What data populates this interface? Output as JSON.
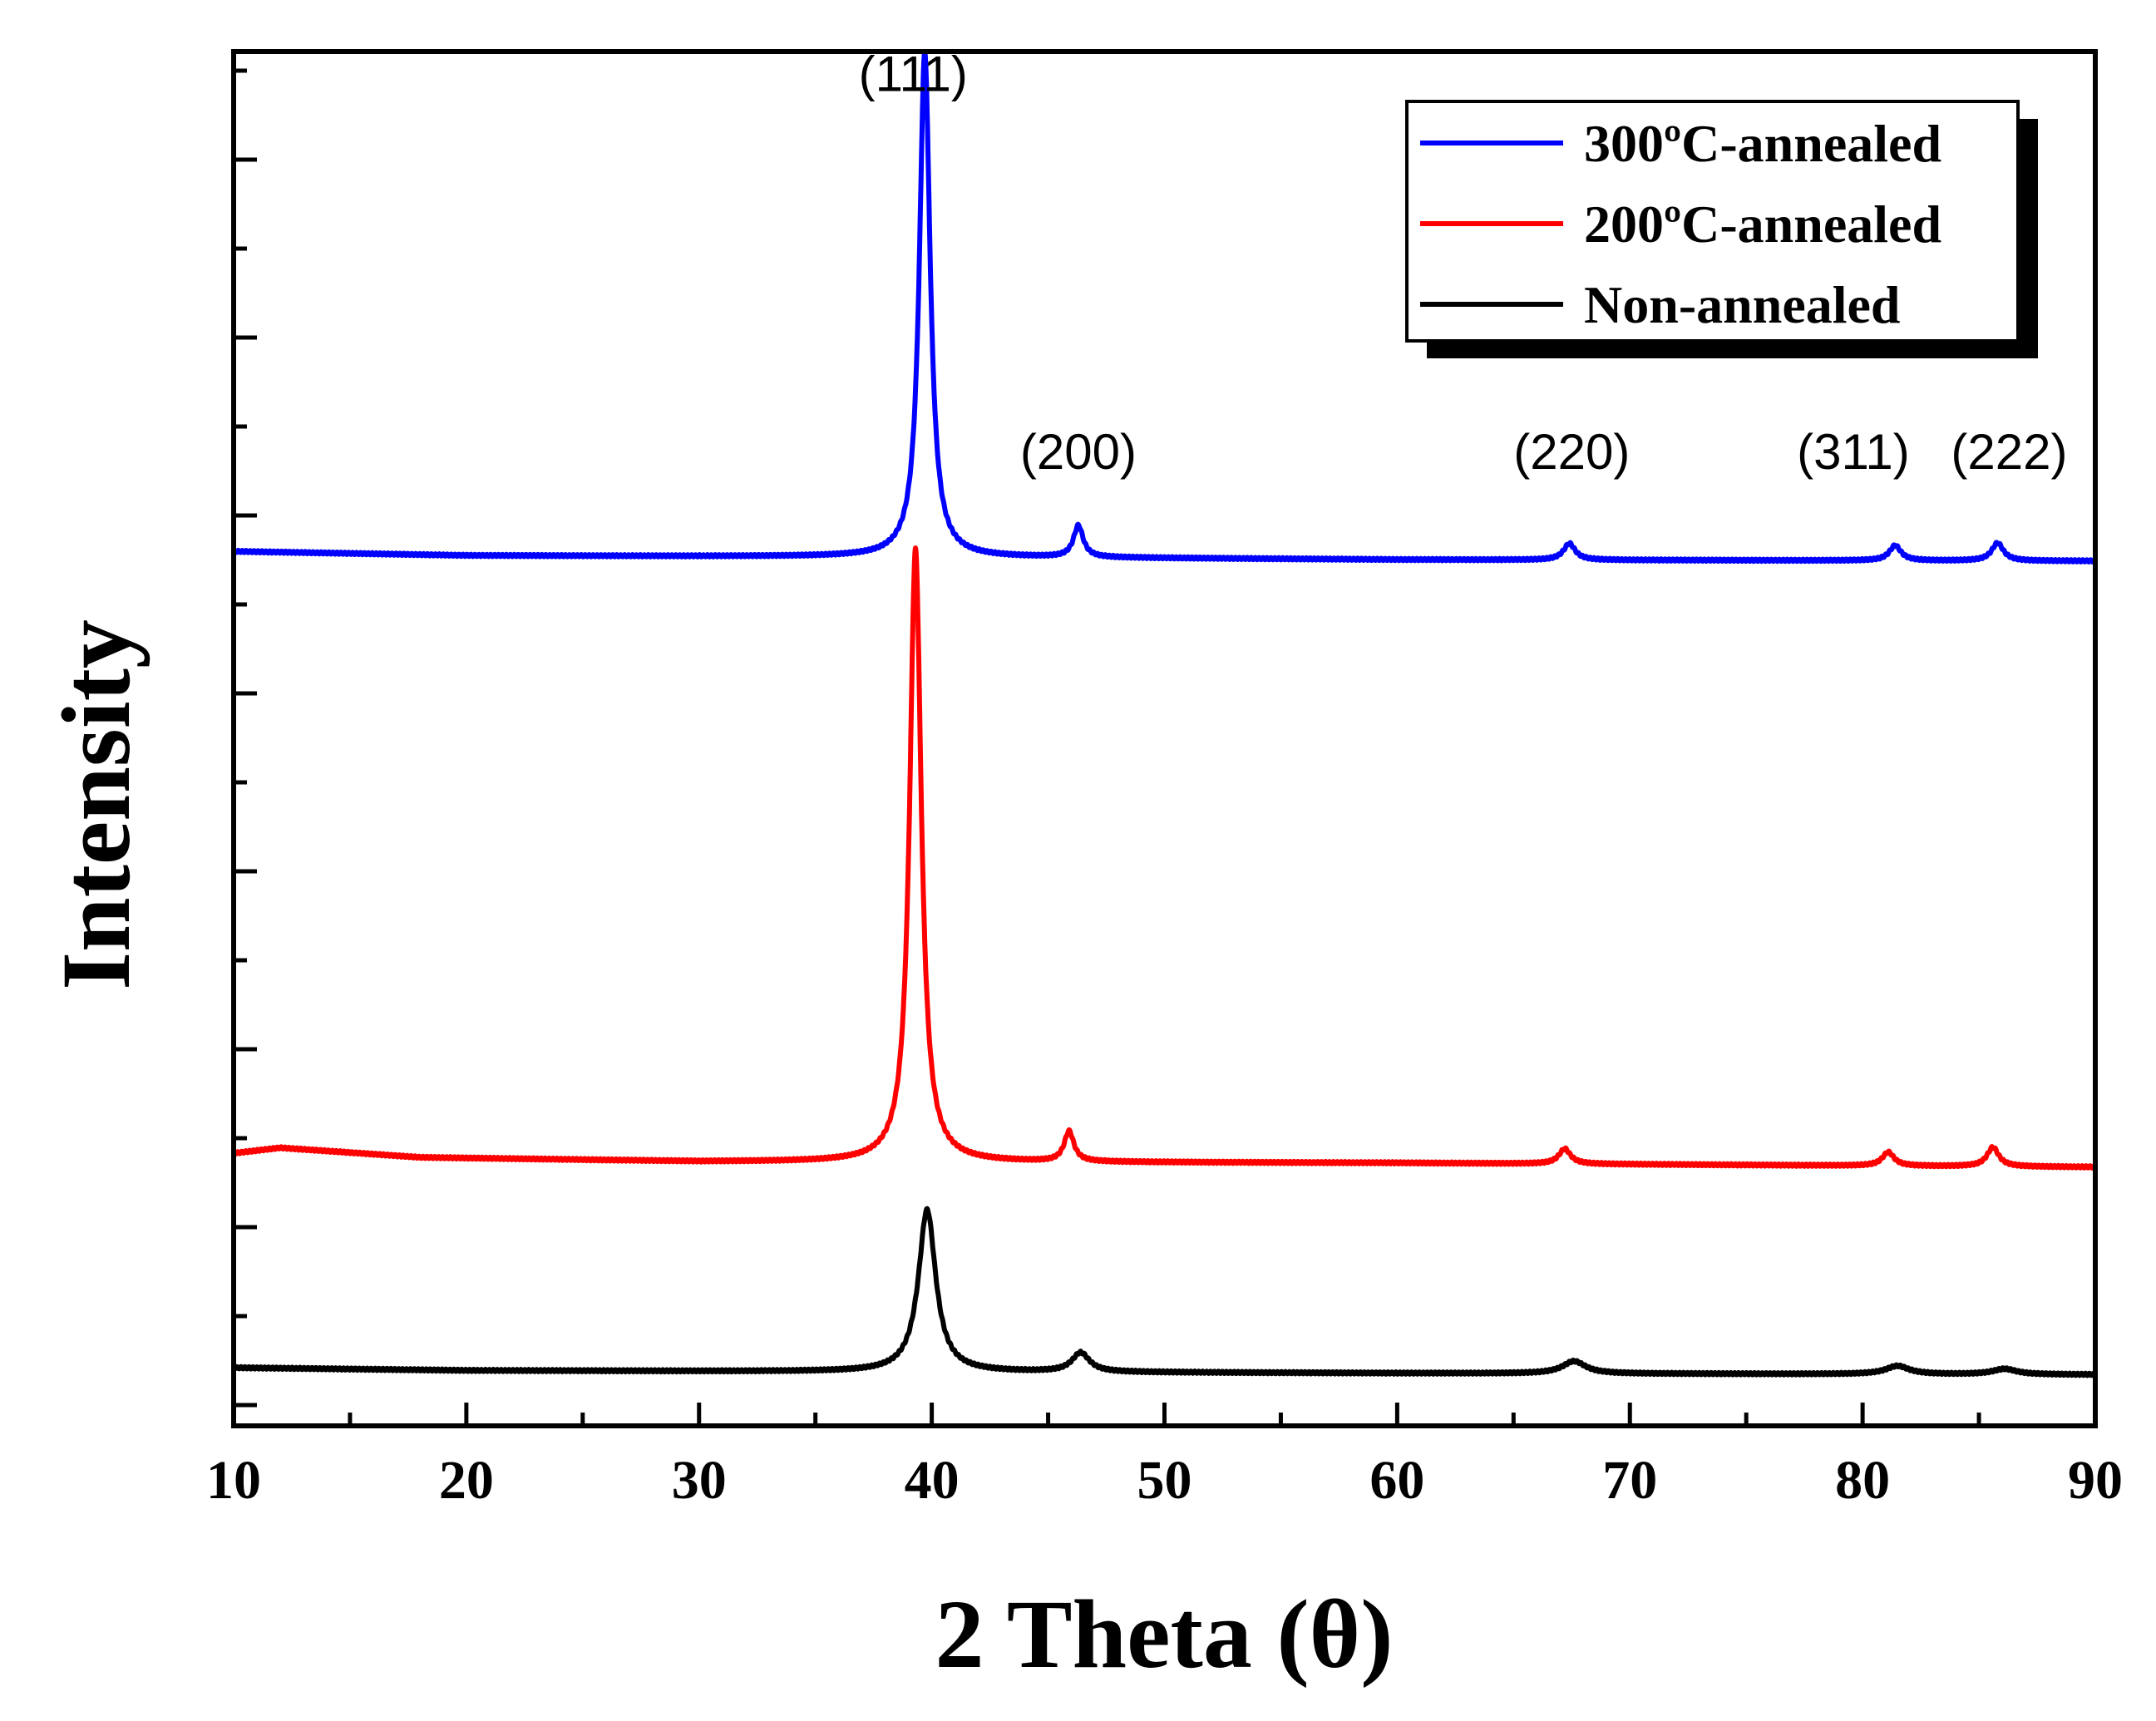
{
  "chart_data": {
    "type": "line",
    "title": "",
    "xlabel": "2 Theta (θ)",
    "ylabel": "Intensity",
    "xlim": [
      10,
      90
    ],
    "ylim": [
      0,
      1
    ],
    "x_ticks": [
      "10",
      "20",
      "30",
      "40",
      "50",
      "60",
      "70",
      "80",
      "90"
    ],
    "y_ticklabels_shown": false,
    "legend_position": "top-right",
    "peak_labels": [
      {
        "text": "(111)",
        "x": 39.2,
        "y": 0.935
      },
      {
        "text": "(200)",
        "x": 46.3,
        "y": 0.66
      },
      {
        "text": "(220)",
        "x": 67.5,
        "y": 0.66
      },
      {
        "text": "(311)",
        "x": 79.6,
        "y": 0.66
      },
      {
        "text": "(222)",
        "x": 86.3,
        "y": 0.66
      }
    ],
    "series": [
      {
        "name": "300ºC-annealed",
        "color": "#0000ff",
        "baseline": [
          [
            10,
            0.6
          ],
          [
            20,
            0.597
          ],
          [
            40,
            0.596
          ],
          [
            60,
            0.594
          ],
          [
            90,
            0.593
          ]
        ],
        "peaks": [
          {
            "x": 39.7,
            "height": 0.367,
            "width": 0.28
          },
          {
            "x": 46.3,
            "height": 0.023,
            "width": 0.25
          },
          {
            "x": 67.4,
            "height": 0.012,
            "width": 0.3
          },
          {
            "x": 81.4,
            "height": 0.011,
            "width": 0.3
          },
          {
            "x": 85.8,
            "height": 0.013,
            "width": 0.3
          }
        ]
      },
      {
        "name": "200ºC-annealed",
        "color": "#ff0000",
        "baseline": [
          [
            10,
            0.162
          ],
          [
            12,
            0.166
          ],
          [
            18,
            0.159
          ],
          [
            30,
            0.156
          ],
          [
            60,
            0.155
          ],
          [
            90,
            0.152
          ]
        ],
        "peaks": [
          {
            "x": 39.3,
            "height": 0.446,
            "width": 0.3
          },
          {
            "x": 45.9,
            "height": 0.022,
            "width": 0.25
          },
          {
            "x": 67.2,
            "height": 0.011,
            "width": 0.3
          },
          {
            "x": 81.1,
            "height": 0.01,
            "width": 0.3
          },
          {
            "x": 85.6,
            "height": 0.014,
            "width": 0.3
          }
        ]
      },
      {
        "name": "Non-annealed",
        "color": "#000000",
        "baseline": [
          [
            10,
            0.006
          ],
          [
            20,
            0.004
          ],
          [
            40,
            0.003
          ],
          [
            60,
            0.002
          ],
          [
            90,
            0.001
          ]
        ],
        "peaks": [
          {
            "x": 39.8,
            "height": 0.118,
            "width": 0.45
          },
          {
            "x": 46.4,
            "height": 0.014,
            "width": 0.45
          },
          {
            "x": 67.6,
            "height": 0.009,
            "width": 0.6
          },
          {
            "x": 81.5,
            "height": 0.006,
            "width": 0.6
          },
          {
            "x": 86.1,
            "height": 0.004,
            "width": 0.6
          }
        ]
      }
    ]
  }
}
